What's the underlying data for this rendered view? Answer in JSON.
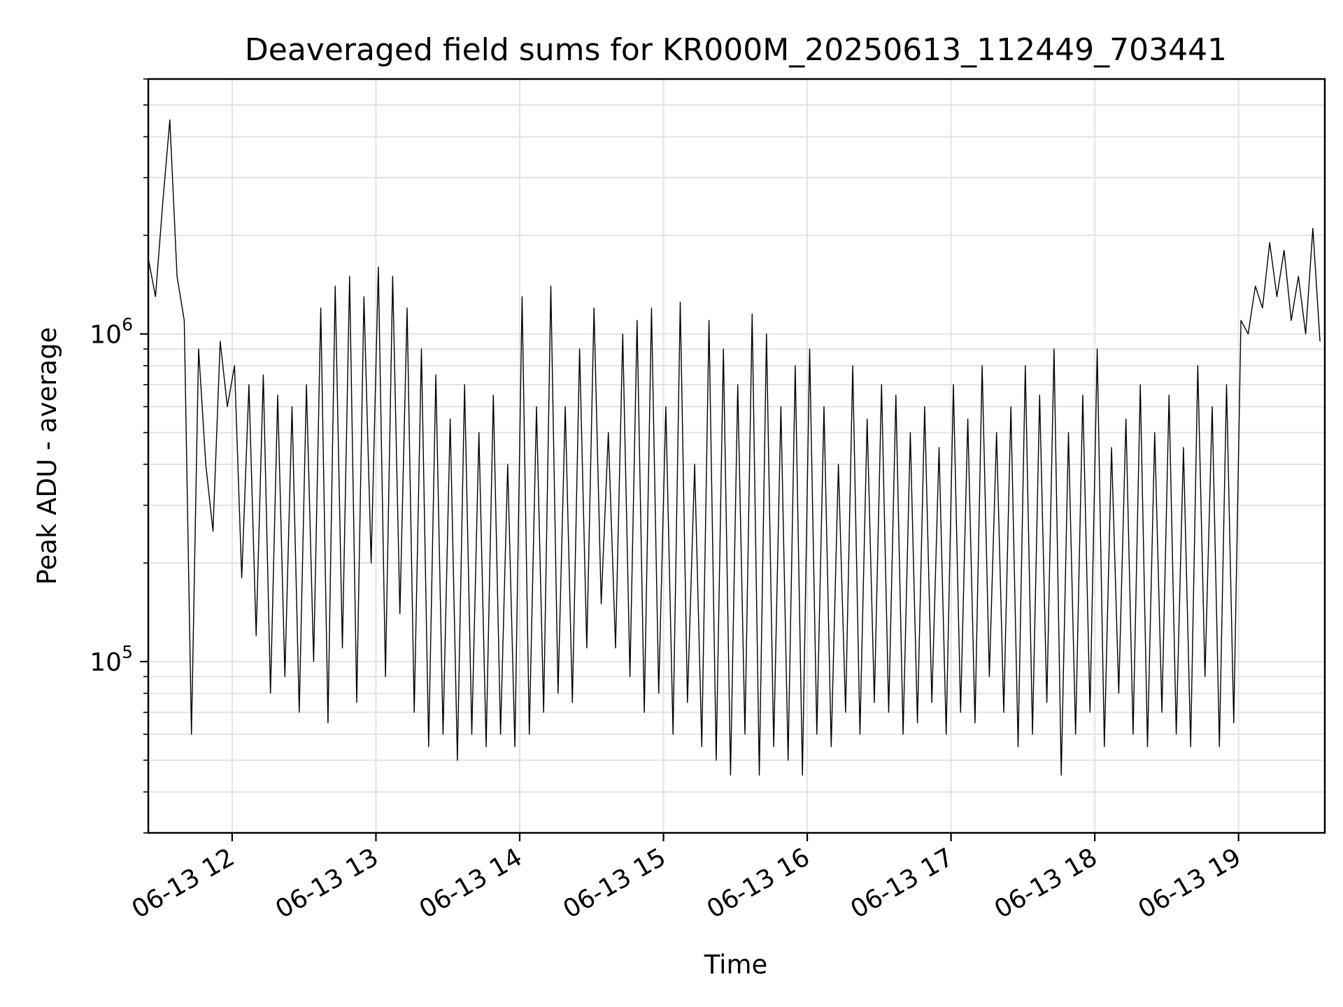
{
  "chart_data": {
    "type": "line",
    "title": "Deaveraged field sums for KR000M_20250613_112449_703441",
    "xlabel": "Time",
    "ylabel": "Peak ADU - average",
    "y_scale": "log",
    "grid": true,
    "legend": "none",
    "line_color": "#000000",
    "xlim": [
      "2025-06-13 11:25",
      "2025-06-13 19:36"
    ],
    "ylim": [
      30000,
      6000000
    ],
    "x_ticks": [
      {
        "value": "2025-06-13 12:00",
        "label": "06-13 12"
      },
      {
        "value": "2025-06-13 13:00",
        "label": "06-13 13"
      },
      {
        "value": "2025-06-13 14:00",
        "label": "06-13 14"
      },
      {
        "value": "2025-06-13 15:00",
        "label": "06-13 15"
      },
      {
        "value": "2025-06-13 16:00",
        "label": "06-13 16"
      },
      {
        "value": "2025-06-13 17:00",
        "label": "06-13 17"
      },
      {
        "value": "2025-06-13 18:00",
        "label": "06-13 18"
      },
      {
        "value": "2025-06-13 19:00",
        "label": "06-13 19"
      }
    ],
    "y_ticks": [
      {
        "value": 100000,
        "base": "10",
        "exp": "5"
      },
      {
        "value": 1000000,
        "base": "10",
        "exp": "6"
      }
    ],
    "series": [
      {
        "x": [
          "2025-06-13 11:25",
          "2025-06-13 11:28",
          "2025-06-13 11:31",
          "2025-06-13 11:34",
          "2025-06-13 11:37",
          "2025-06-13 11:40",
          "2025-06-13 11:43",
          "2025-06-13 11:46",
          "2025-06-13 11:49",
          "2025-06-13 11:52",
          "2025-06-13 11:55",
          "2025-06-13 11:58",
          "2025-06-13 12:01",
          "2025-06-13 12:04",
          "2025-06-13 12:07",
          "2025-06-13 12:10",
          "2025-06-13 12:13",
          "2025-06-13 12:16",
          "2025-06-13 12:19",
          "2025-06-13 12:22",
          "2025-06-13 12:25",
          "2025-06-13 12:28",
          "2025-06-13 12:31",
          "2025-06-13 12:34",
          "2025-06-13 12:37",
          "2025-06-13 12:40",
          "2025-06-13 12:43",
          "2025-06-13 12:46",
          "2025-06-13 12:49",
          "2025-06-13 12:52",
          "2025-06-13 12:55",
          "2025-06-13 12:58",
          "2025-06-13 13:01",
          "2025-06-13 13:04",
          "2025-06-13 13:07",
          "2025-06-13 13:10",
          "2025-06-13 13:13",
          "2025-06-13 13:16",
          "2025-06-13 13:19",
          "2025-06-13 13:22",
          "2025-06-13 13:25",
          "2025-06-13 13:28",
          "2025-06-13 13:31",
          "2025-06-13 13:34",
          "2025-06-13 13:37",
          "2025-06-13 13:40",
          "2025-06-13 13:43",
          "2025-06-13 13:46",
          "2025-06-13 13:49",
          "2025-06-13 13:52",
          "2025-06-13 13:55",
          "2025-06-13 13:58",
          "2025-06-13 14:01",
          "2025-06-13 14:04",
          "2025-06-13 14:07",
          "2025-06-13 14:10",
          "2025-06-13 14:13",
          "2025-06-13 14:16",
          "2025-06-13 14:19",
          "2025-06-13 14:22",
          "2025-06-13 14:25",
          "2025-06-13 14:28",
          "2025-06-13 14:31",
          "2025-06-13 14:34",
          "2025-06-13 14:37",
          "2025-06-13 14:40",
          "2025-06-13 14:43",
          "2025-06-13 14:46",
          "2025-06-13 14:49",
          "2025-06-13 14:52",
          "2025-06-13 14:55",
          "2025-06-13 14:58",
          "2025-06-13 15:01",
          "2025-06-13 15:04",
          "2025-06-13 15:07",
          "2025-06-13 15:10",
          "2025-06-13 15:13",
          "2025-06-13 15:16",
          "2025-06-13 15:19",
          "2025-06-13 15:22",
          "2025-06-13 15:25",
          "2025-06-13 15:28",
          "2025-06-13 15:31",
          "2025-06-13 15:34",
          "2025-06-13 15:37",
          "2025-06-13 15:40",
          "2025-06-13 15:43",
          "2025-06-13 15:46",
          "2025-06-13 15:49",
          "2025-06-13 15:52",
          "2025-06-13 15:55",
          "2025-06-13 15:58",
          "2025-06-13 16:01",
          "2025-06-13 16:04",
          "2025-06-13 16:07",
          "2025-06-13 16:10",
          "2025-06-13 16:13",
          "2025-06-13 16:16",
          "2025-06-13 16:19",
          "2025-06-13 16:22",
          "2025-06-13 16:25",
          "2025-06-13 16:28",
          "2025-06-13 16:31",
          "2025-06-13 16:34",
          "2025-06-13 16:37",
          "2025-06-13 16:40",
          "2025-06-13 16:43",
          "2025-06-13 16:46",
          "2025-06-13 16:49",
          "2025-06-13 16:52",
          "2025-06-13 16:55",
          "2025-06-13 16:58",
          "2025-06-13 17:01",
          "2025-06-13 17:04",
          "2025-06-13 17:07",
          "2025-06-13 17:10",
          "2025-06-13 17:13",
          "2025-06-13 17:16",
          "2025-06-13 17:19",
          "2025-06-13 17:22",
          "2025-06-13 17:25",
          "2025-06-13 17:28",
          "2025-06-13 17:31",
          "2025-06-13 17:34",
          "2025-06-13 17:37",
          "2025-06-13 17:40",
          "2025-06-13 17:43",
          "2025-06-13 17:46",
          "2025-06-13 17:49",
          "2025-06-13 17:52",
          "2025-06-13 17:55",
          "2025-06-13 17:58",
          "2025-06-13 18:01",
          "2025-06-13 18:04",
          "2025-06-13 18:07",
          "2025-06-13 18:10",
          "2025-06-13 18:13",
          "2025-06-13 18:16",
          "2025-06-13 18:19",
          "2025-06-13 18:22",
          "2025-06-13 18:25",
          "2025-06-13 18:28",
          "2025-06-13 18:31",
          "2025-06-13 18:34",
          "2025-06-13 18:37",
          "2025-06-13 18:40",
          "2025-06-13 18:43",
          "2025-06-13 18:46",
          "2025-06-13 18:49",
          "2025-06-13 18:52",
          "2025-06-13 18:55",
          "2025-06-13 18:58",
          "2025-06-13 19:01",
          "2025-06-13 19:04",
          "2025-06-13 19:07",
          "2025-06-13 19:10",
          "2025-06-13 19:13",
          "2025-06-13 19:16",
          "2025-06-13 19:19",
          "2025-06-13 19:22",
          "2025-06-13 19:25",
          "2025-06-13 19:28",
          "2025-06-13 19:31",
          "2025-06-13 19:34"
        ],
        "values": [
          1700000,
          1300000,
          2500000,
          4500000,
          1500000,
          1100000,
          60000,
          900000,
          400000,
          250000,
          950000,
          600000,
          800000,
          180000,
          700000,
          120000,
          750000,
          80000,
          650000,
          90000,
          600000,
          70000,
          700000,
          100000,
          1200000,
          65000,
          1400000,
          110000,
          1500000,
          75000,
          1300000,
          200000,
          1600000,
          90000,
          1500000,
          140000,
          1200000,
          70000,
          900000,
          55000,
          750000,
          60000,
          550000,
          50000,
          700000,
          60000,
          500000,
          55000,
          650000,
          60000,
          400000,
          55000,
          1300000,
          60000,
          600000,
          70000,
          1400000,
          80000,
          600000,
          75000,
          900000,
          110000,
          1200000,
          150000,
          500000,
          110000,
          1000000,
          90000,
          1100000,
          70000,
          1200000,
          80000,
          600000,
          60000,
          1250000,
          75000,
          400000,
          55000,
          1100000,
          50000,
          900000,
          45000,
          700000,
          60000,
          1150000,
          45000,
          1000000,
          55000,
          600000,
          50000,
          800000,
          45000,
          900000,
          60000,
          600000,
          55000,
          400000,
          70000,
          800000,
          60000,
          550000,
          75000,
          700000,
          70000,
          650000,
          60000,
          500000,
          65000,
          600000,
          75000,
          450000,
          60000,
          700000,
          70000,
          550000,
          65000,
          800000,
          90000,
          500000,
          70000,
          600000,
          55000,
          800000,
          60000,
          650000,
          75000,
          900000,
          45000,
          500000,
          60000,
          650000,
          70000,
          900000,
          55000,
          450000,
          80000,
          550000,
          60000,
          700000,
          55000,
          500000,
          70000,
          650000,
          60000,
          450000,
          55000,
          800000,
          90000,
          600000,
          55000,
          700000,
          65000,
          1100000,
          1000000,
          1400000,
          1200000,
          1900000,
          1300000,
          1800000,
          1100000,
          1500000,
          1000000,
          2100000,
          950000
        ]
      }
    ]
  }
}
